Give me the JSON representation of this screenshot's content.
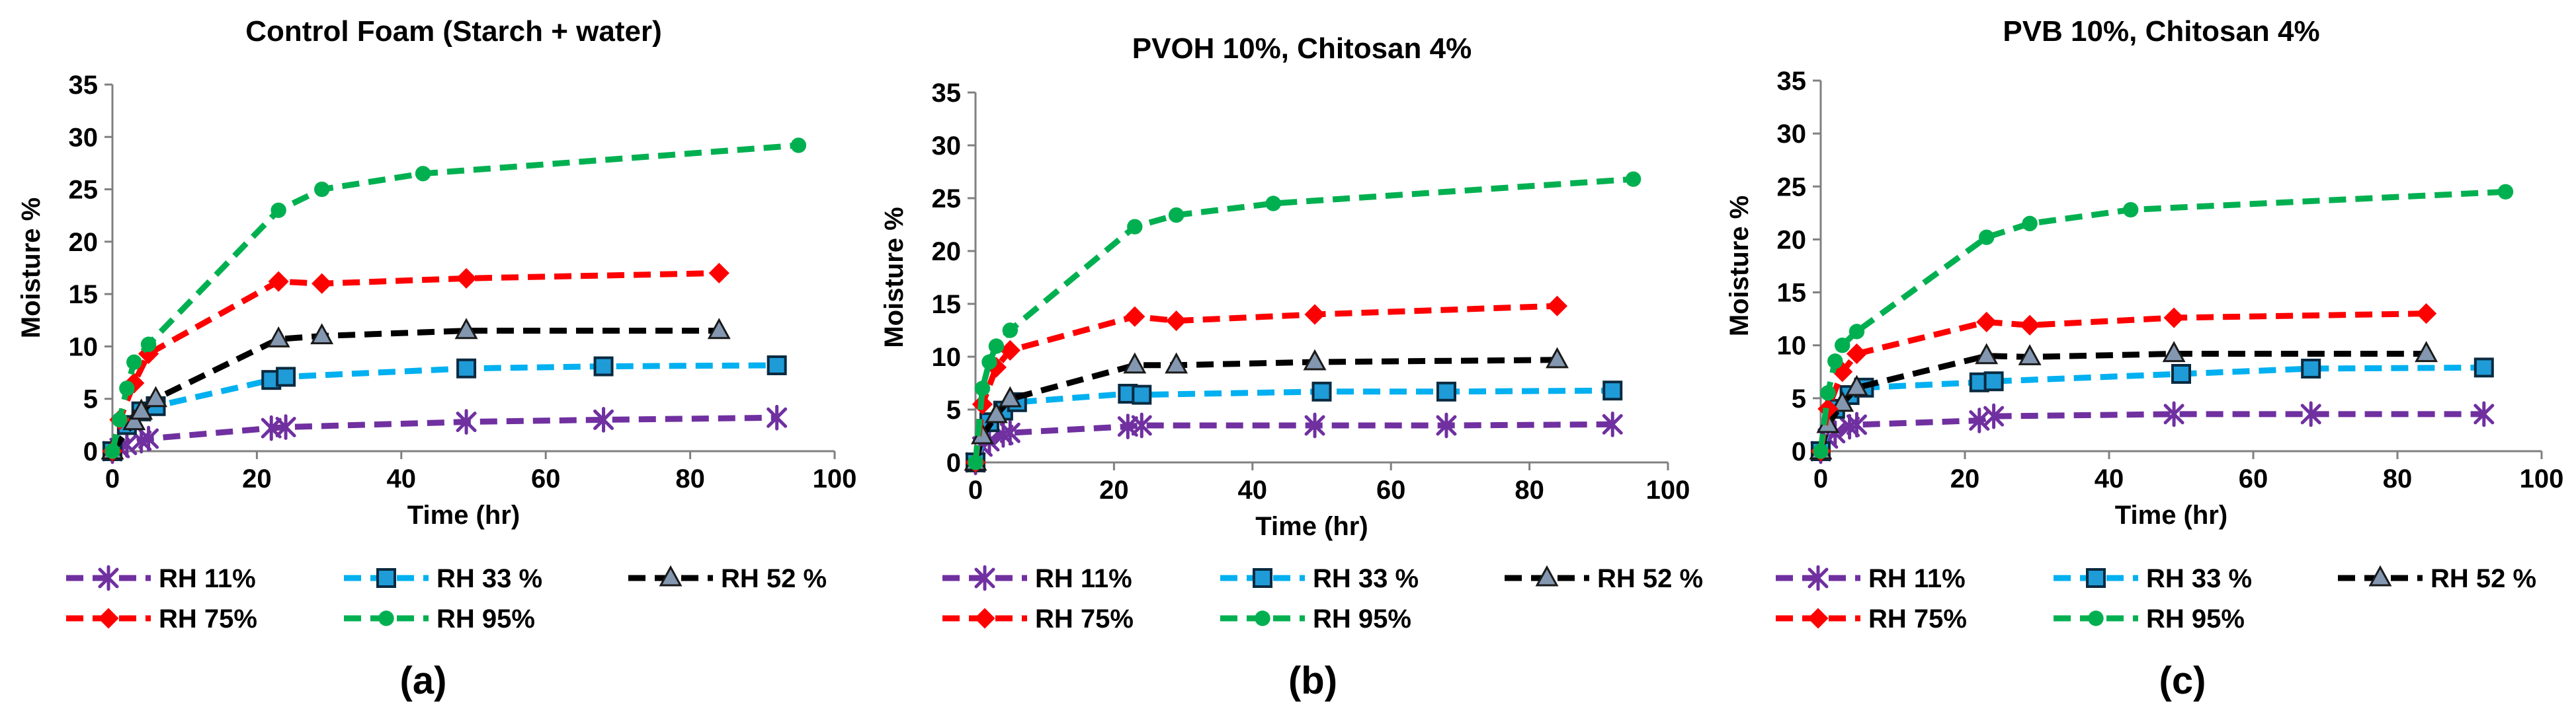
{
  "panel_labels": [
    "(a)",
    "(b)",
    "(c)"
  ],
  "colors": {
    "RH 11%": "#7030a0",
    "RH 33 %": "#00b0f0",
    "RH 52 %": "#000000",
    "RH 75%": "#ff0000",
    "RH 95%": "#00b050",
    "square_fill": "#1f9bd7",
    "triangle_fill": "#8497b0"
  },
  "chart_data": [
    {
      "type": "line",
      "title": "Control Foam (Starch +  water)",
      "xlabel": "Time (hr)",
      "ylabel": "Moisture %",
      "xlim": [
        0,
        100
      ],
      "ylim": [
        0,
        35
      ],
      "xticks": [
        "0",
        "20",
        "40",
        "60",
        "80",
        "100"
      ],
      "yticks": [
        "0",
        "5",
        "10",
        "15",
        "20",
        "25",
        "30",
        "35"
      ],
      "grid": false,
      "legend": "bottom",
      "series": [
        {
          "name": "RH 11%",
          "marker": "star",
          "x": [
            0,
            1,
            2,
            4,
            5,
            22,
            24,
            49,
            68,
            92
          ],
          "y": [
            0,
            0.3,
            0.6,
            1.0,
            1.2,
            2.2,
            2.3,
            2.8,
            3.0,
            3.2
          ]
        },
        {
          "name": "RH 33 %",
          "marker": "square",
          "x": [
            0,
            2,
            4,
            6,
            22,
            24,
            49,
            68,
            92
          ],
          "y": [
            0,
            2.5,
            3.8,
            4.3,
            6.8,
            7.1,
            7.9,
            8.1,
            8.2
          ]
        },
        {
          "name": "RH 52 %",
          "marker": "triangle",
          "x": [
            0,
            3,
            4,
            6,
            23,
            29,
            49,
            84
          ],
          "y": [
            0,
            2.8,
            3.8,
            5.0,
            10.7,
            11.0,
            11.5,
            11.5
          ]
        },
        {
          "name": "RH 75%",
          "marker": "diamond",
          "x": [
            0,
            1,
            3,
            5,
            23,
            29,
            49,
            84
          ],
          "y": [
            0,
            3.0,
            6.5,
            9.3,
            16.2,
            16.0,
            16.5,
            17.0
          ]
        },
        {
          "name": "RH 95%",
          "marker": "circle",
          "x": [
            0,
            1,
            2,
            3,
            5,
            23,
            29,
            43,
            95
          ],
          "y": [
            0,
            3.0,
            6.0,
            8.5,
            10.2,
            23.0,
            25.0,
            26.5,
            29.2
          ]
        }
      ]
    },
    {
      "type": "line",
      "title": "PVOH 10%, Chitosan 4%",
      "xlabel": "Time (hr)",
      "ylabel": "Moisture %",
      "xlim": [
        0,
        100
      ],
      "ylim": [
        0,
        35
      ],
      "xticks": [
        "0",
        "20",
        "40",
        "60",
        "80",
        "100"
      ],
      "yticks": [
        "0",
        "5",
        "10",
        "15",
        "20",
        "25",
        "30",
        "35"
      ],
      "grid": false,
      "legend": "bottom",
      "series": [
        {
          "name": "RH 11%",
          "marker": "star",
          "x": [
            0,
            1,
            2,
            4,
            5,
            22,
            24,
            49,
            68,
            92
          ],
          "y": [
            0,
            1.5,
            2.0,
            2.6,
            2.8,
            3.4,
            3.5,
            3.5,
            3.5,
            3.6
          ]
        },
        {
          "name": "RH 33 %",
          "marker": "square",
          "x": [
            0,
            2,
            4,
            6,
            22,
            24,
            50,
            68,
            92
          ],
          "y": [
            0,
            3.8,
            4.9,
            5.7,
            6.5,
            6.4,
            6.7,
            6.7,
            6.8
          ]
        },
        {
          "name": "RH 52 %",
          "marker": "triangle",
          "x": [
            0,
            1,
            3,
            5,
            23,
            29,
            49,
            84
          ],
          "y": [
            0,
            2.5,
            4.5,
            6.0,
            9.2,
            9.2,
            9.5,
            9.7
          ]
        },
        {
          "name": "RH 75%",
          "marker": "diamond",
          "x": [
            0,
            1,
            3,
            5,
            23,
            29,
            49,
            84
          ],
          "y": [
            0,
            5.5,
            9.0,
            10.6,
            13.8,
            13.4,
            14.0,
            14.8
          ]
        },
        {
          "name": "RH 95%",
          "marker": "circle",
          "x": [
            0,
            1,
            2,
            3,
            5,
            23,
            29,
            43,
            95
          ],
          "y": [
            0,
            7.0,
            9.5,
            11.0,
            12.5,
            22.3,
            23.4,
            24.5,
            26.8
          ]
        }
      ]
    },
    {
      "type": "line",
      "title": "PVB 10%, Chitosan 4%",
      "xlabel": "Time (hr)",
      "ylabel": "Moisture %",
      "xlim": [
        0,
        100
      ],
      "ylim": [
        0,
        35
      ],
      "xticks": [
        "0",
        "20",
        "40",
        "60",
        "80",
        "100"
      ],
      "yticks": [
        "0",
        "5",
        "10",
        "15",
        "20",
        "25",
        "30",
        "35"
      ],
      "grid": false,
      "legend": "bottom",
      "series": [
        {
          "name": "RH 11%",
          "marker": "star",
          "x": [
            0,
            1,
            2,
            4,
            5,
            22,
            24,
            49,
            68,
            92
          ],
          "y": [
            0,
            1.2,
            1.7,
            2.3,
            2.5,
            2.9,
            3.3,
            3.5,
            3.5,
            3.5
          ]
        },
        {
          "name": "RH 33 %",
          "marker": "square",
          "x": [
            0,
            2,
            4,
            6,
            22,
            24,
            50,
            68,
            92
          ],
          "y": [
            0,
            4.0,
            5.3,
            6.0,
            6.5,
            6.6,
            7.3,
            7.8,
            7.9
          ]
        },
        {
          "name": "RH 52 %",
          "marker": "triangle",
          "x": [
            0,
            1,
            3,
            5,
            23,
            29,
            49,
            84
          ],
          "y": [
            0,
            2.5,
            4.5,
            6.0,
            9.0,
            8.9,
            9.2,
            9.2
          ]
        },
        {
          "name": "RH 75%",
          "marker": "diamond",
          "x": [
            0,
            1,
            3,
            5,
            23,
            29,
            49,
            84
          ],
          "y": [
            0,
            4.0,
            7.5,
            9.2,
            12.2,
            11.9,
            12.6,
            13.0
          ]
        },
        {
          "name": "RH 95%",
          "marker": "circle",
          "x": [
            0,
            1,
            2,
            3,
            5,
            23,
            29,
            43,
            95
          ],
          "y": [
            0,
            5.5,
            8.5,
            10.0,
            11.3,
            20.2,
            21.5,
            22.8,
            24.5
          ]
        }
      ]
    }
  ]
}
